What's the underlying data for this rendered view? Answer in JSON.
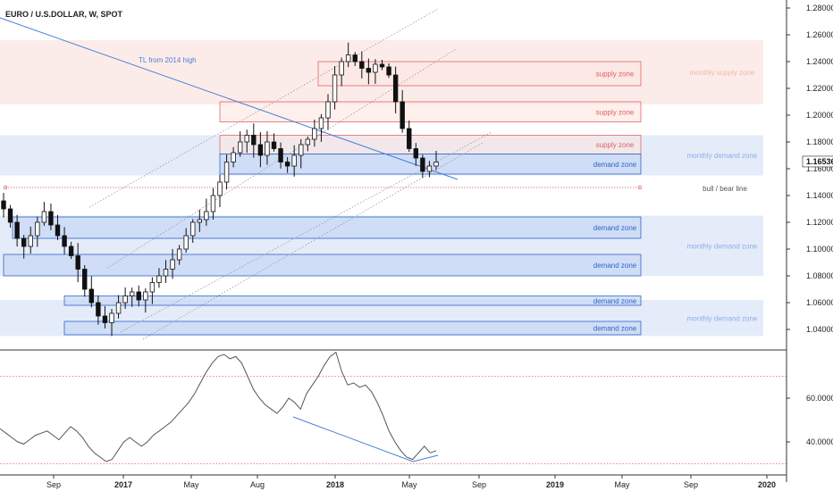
{
  "header": {
    "title": "EURO / U.S.DOLLAR, W, SPOT"
  },
  "annotations": {
    "trendline_label": "TL from 2014 high",
    "bull_bear_label": "bull / bear line"
  },
  "colors": {
    "supply_fill": "#fbe6e1",
    "supply_border": "#e06666",
    "supply_text": "#e06060",
    "demand_fill": "#c9d9f5",
    "demand_border": "#2f66c8",
    "demand_text": "#2f66c8",
    "monthly_supply_text": "#f2b8aa",
    "monthly_demand_text": "#8eaee8",
    "price_tag_bg": "#ffffff",
    "trendline": "#4a7fd6",
    "channel": "#999999",
    "bull_bear": "#e06666"
  },
  "chart_data": [
    {
      "type": "candlestick",
      "title": "EURO / U.S.DOLLAR, W, SPOT",
      "ylim": [
        1.03,
        1.285
      ],
      "y_ticks": [
        "1.28000",
        "1.26000",
        "1.24000",
        "1.22000",
        "1.20000",
        "1.18000",
        "1.16000",
        "1.14000",
        "1.12000",
        "1.10000",
        "1.08000",
        "1.06000",
        "1.04000"
      ],
      "y_tick_values": [
        1.28,
        1.26,
        1.24,
        1.22,
        1.2,
        1.18,
        1.16,
        1.14,
        1.12,
        1.1,
        1.08,
        1.06,
        1.04
      ],
      "last_price": "1.16536",
      "last_price_value": 1.16536,
      "x_ticks": [
        "Sep",
        "2017",
        "May",
        "Aug",
        "2018",
        "May",
        "Sep",
        "2019",
        "May",
        "Sep",
        "2020"
      ],
      "close_path": [
        1.13,
        1.12,
        1.108,
        1.102,
        1.11,
        1.12,
        1.128,
        1.118,
        1.11,
        1.102,
        1.095,
        1.085,
        1.07,
        1.06,
        1.05,
        1.045,
        1.052,
        1.06,
        1.065,
        1.068,
        1.062,
        1.068,
        1.075,
        1.08,
        1.085,
        1.092,
        1.1,
        1.11,
        1.12,
        1.122,
        1.128,
        1.14,
        1.15,
        1.165,
        1.172,
        1.18,
        1.185,
        1.178,
        1.17,
        1.18,
        1.175,
        1.165,
        1.162,
        1.17,
        1.178,
        1.182,
        1.19,
        1.198,
        1.21,
        1.23,
        1.24,
        1.245,
        1.24,
        1.235,
        1.232,
        1.238,
        1.236,
        1.23,
        1.21,
        1.19,
        1.175,
        1.168,
        1.158,
        1.162,
        1.165
      ],
      "zones": [
        {
          "kind": "monthly-supply",
          "label": "monthly supply zone",
          "from": 1.208,
          "to": 1.256
        },
        {
          "kind": "monthly-demand",
          "label": "monthly demand zone",
          "from": 1.155,
          "to": 1.185
        },
        {
          "kind": "monthly-demand",
          "label": "monthly demand zone",
          "from": 1.08,
          "to": 1.125
        },
        {
          "kind": "monthly-demand",
          "label": "monthly demand zone",
          "from": 1.035,
          "to": 1.062
        },
        {
          "kind": "supply",
          "label": "supply zone",
          "from": 1.222,
          "to": 1.24
        },
        {
          "kind": "supply",
          "label": "supply zone",
          "from": 1.195,
          "to": 1.21
        },
        {
          "kind": "supply",
          "label": "supply zone",
          "from": 1.171,
          "to": 1.185
        },
        {
          "kind": "demand",
          "label": "demand zone",
          "from": 1.156,
          "to": 1.171
        },
        {
          "kind": "demand",
          "label": "demand zone",
          "from": 1.108,
          "to": 1.124
        },
        {
          "kind": "demand",
          "label": "demand zone",
          "from": 1.08,
          "to": 1.096
        },
        {
          "kind": "demand",
          "label": "demand zone",
          "from": 1.058,
          "to": 1.065
        },
        {
          "kind": "demand",
          "label": "demand zone",
          "from": 1.036,
          "to": 1.046
        }
      ],
      "bull_bear_level": 1.146,
      "grid": false
    },
    {
      "type": "line",
      "ylim": [
        28,
        82
      ],
      "y_ticks": [
        "60.0000",
        "40.0000"
      ],
      "y_tick_values": [
        60,
        40
      ],
      "dotted_levels": [
        30,
        70
      ],
      "values": [
        46,
        44,
        42,
        40,
        39,
        41,
        43,
        44,
        45,
        43,
        41,
        44,
        47,
        45,
        42,
        38,
        35,
        33,
        31,
        32,
        36,
        40,
        42,
        40,
        38,
        40,
        43,
        45,
        47,
        49,
        52,
        55,
        58,
        62,
        67,
        72,
        76,
        79,
        80,
        78,
        79,
        76,
        70,
        64,
        60,
        57,
        55,
        53,
        56,
        60,
        58,
        55,
        62,
        66,
        70,
        75,
        79,
        81,
        72,
        66,
        67,
        65,
        66,
        63,
        58,
        52,
        45,
        40,
        36,
        33,
        32,
        35,
        38,
        35,
        36
      ]
    }
  ]
}
